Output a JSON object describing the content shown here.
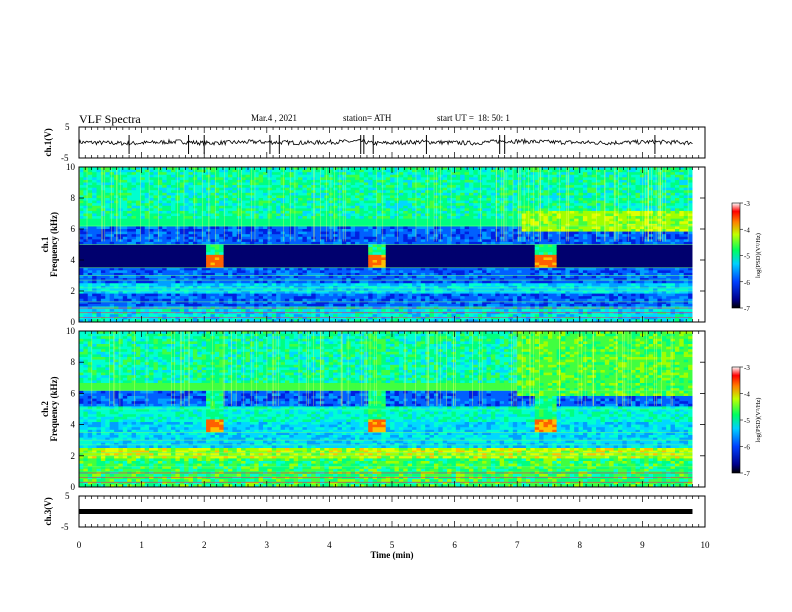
{
  "header": {
    "title": "VLF Spectra",
    "date": "Mar.4 , 2021",
    "station": "station= ATH",
    "start_label": "start UT =",
    "start_time": "18: 50: 1"
  },
  "colors": {
    "spectrogram_low": "#000060",
    "spectrogram_mid": "#00c8ff",
    "spectrogram_high": "#ff0000",
    "trace": "#000000"
  },
  "chart_data": [
    {
      "type": "line",
      "panel": "ch1-waveform",
      "ylabel": "ch.1(V)",
      "ylim": [
        -5,
        5
      ],
      "yticks": [
        "5",
        "-5"
      ],
      "xlim": [
        0,
        10
      ],
      "x": [
        0,
        0.8,
        1.6,
        2.0,
        2.8,
        3.6,
        4.5,
        4.7,
        5.5,
        6.3,
        6.8,
        7.6,
        8.4,
        9.2,
        9.8
      ],
      "y": [
        0.1,
        -0.3,
        0.3,
        -0.2,
        0.2,
        -0.1,
        0.4,
        -0.3,
        0.2,
        -0.2,
        0.5,
        0.1,
        -0.1,
        0.2,
        -0.1
      ]
    },
    {
      "type": "heatmap",
      "panel": "ch1-spectrogram",
      "ylabel": "ch.1",
      "ylabel2": "Frequency (kHz)",
      "xlim": [
        0,
        10
      ],
      "ylim": [
        0,
        10
      ],
      "yticks": [
        "0",
        "2",
        "4",
        "6",
        "8",
        "10"
      ],
      "colorbar": {
        "label": "log(PSD)(V²/Hz)",
        "range": [
          -7,
          -3
        ],
        "ticks": [
          "-3",
          "-4",
          "-5",
          "-6",
          "-7"
        ]
      },
      "bursts_min": [
        [
          2.0,
          2.3
        ],
        [
          4.6,
          4.9
        ],
        [
          7.3,
          7.6
        ]
      ],
      "enhanced_band_from_min": 7.1
    },
    {
      "type": "heatmap",
      "panel": "ch2-spectrogram",
      "ylabel": "ch.2",
      "ylabel2": "Frequency (kHz)",
      "xlim": [
        0,
        10
      ],
      "ylim": [
        0,
        10
      ],
      "yticks": [
        "0",
        "2",
        "4",
        "6",
        "8",
        "10"
      ],
      "colorbar": {
        "label": "log(PSD)(V²/Hz)",
        "range": [
          -7,
          -3
        ],
        "ticks": [
          "-3",
          "-4",
          "-5",
          "-6",
          "-7"
        ]
      },
      "bursts_min": [
        [
          2.0,
          2.3
        ],
        [
          4.6,
          4.9
        ],
        [
          7.3,
          7.6
        ]
      ],
      "enhanced_band_from_min": 7.0
    },
    {
      "type": "line",
      "panel": "ch3-waveform",
      "ylabel": "ch.3(V)",
      "ylim": [
        -5,
        5
      ],
      "yticks": [
        "5",
        "-5"
      ],
      "xlim": [
        0,
        10
      ],
      "x": [
        0,
        9.8
      ],
      "y": [
        0,
        0
      ]
    }
  ],
  "xaxis": {
    "label": "Time (min)",
    "ticks": [
      "0",
      "1",
      "2",
      "3",
      "4",
      "5",
      "6",
      "7",
      "8",
      "9",
      "10"
    ]
  }
}
